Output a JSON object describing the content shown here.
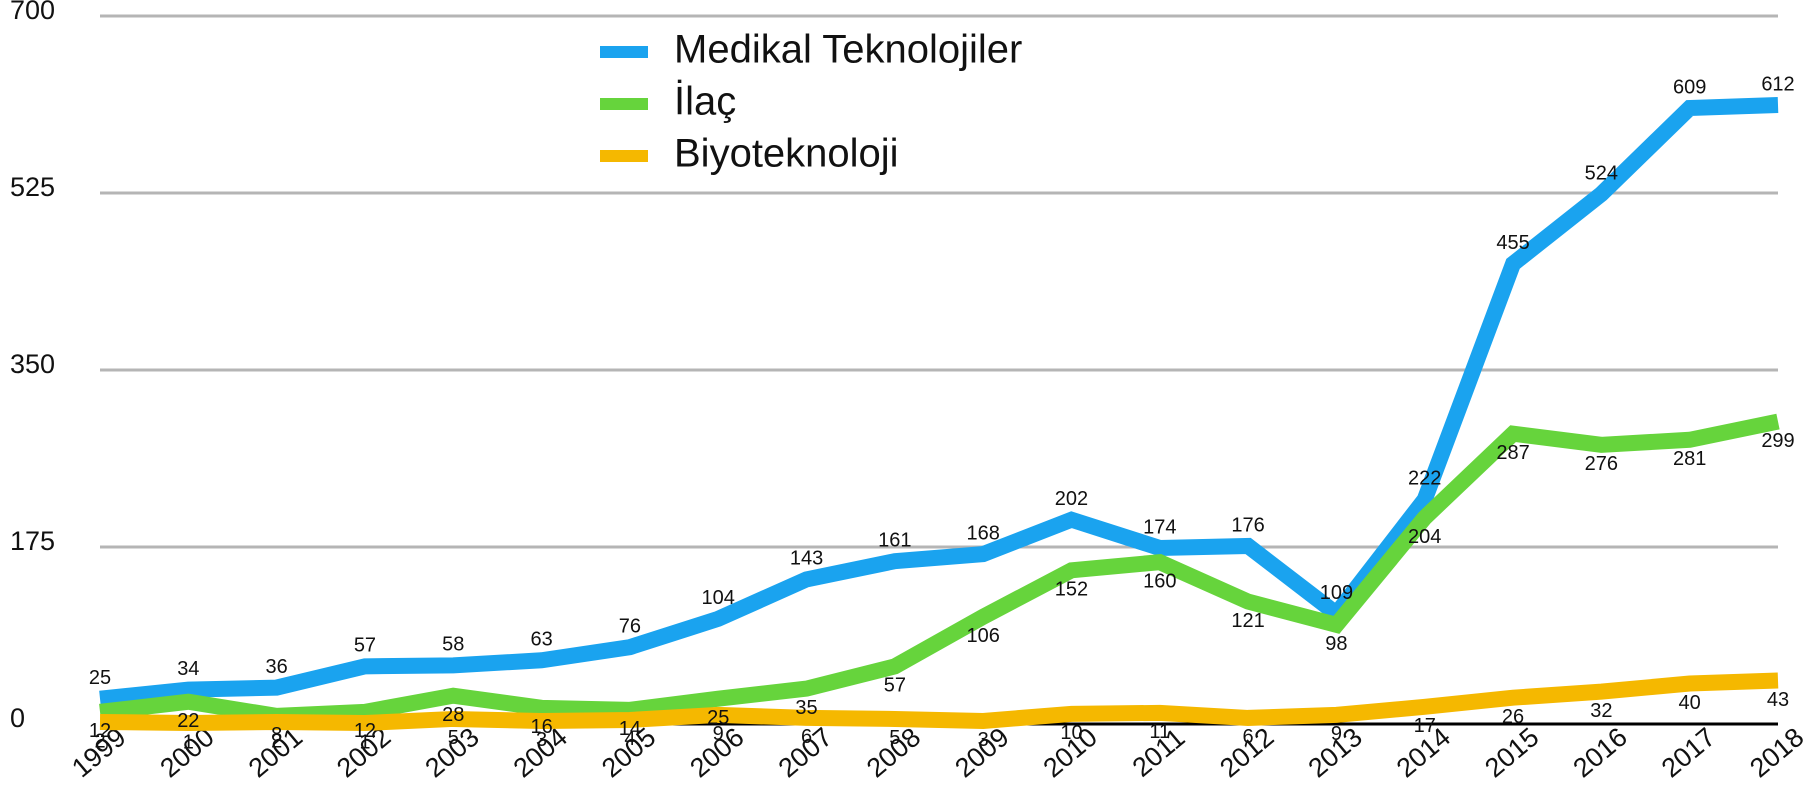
{
  "chart_data": {
    "type": "line",
    "categories": [
      "1999",
      "2000",
      "2001",
      "2002",
      "2003",
      "2004",
      "2005",
      "2006",
      "2007",
      "2008",
      "2009",
      "2010",
      "2011",
      "2012",
      "2013",
      "2014",
      "2015",
      "2016",
      "2017",
      "2018"
    ],
    "series": [
      {
        "name": "Medikal Teknolojiler",
        "color": "#1aa3ef",
        "values": [
          25,
          34,
          36,
          57,
          58,
          63,
          76,
          104,
          143,
          161,
          168,
          202,
          174,
          176,
          109,
          222,
          455,
          524,
          609,
          612
        ]
      },
      {
        "name": "İlaç",
        "color": "#66d43c",
        "values": [
          12,
          22,
          8,
          12,
          28,
          16,
          14,
          25,
          35,
          57,
          106,
          152,
          160,
          121,
          98,
          204,
          287,
          276,
          281,
          299
        ]
      },
      {
        "name": "Biyoteknoloji",
        "color": "#f5b800",
        "values": [
          2,
          1,
          2,
          1,
          5,
          3,
          4,
          9,
          6,
          5,
          3,
          10,
          11,
          6,
          9,
          17,
          26,
          32,
          40,
          43
        ]
      }
    ],
    "ylim": [
      0,
      700
    ],
    "yticks": [
      0,
      175,
      350,
      525,
      700
    ],
    "grid": true,
    "legend": "top"
  }
}
